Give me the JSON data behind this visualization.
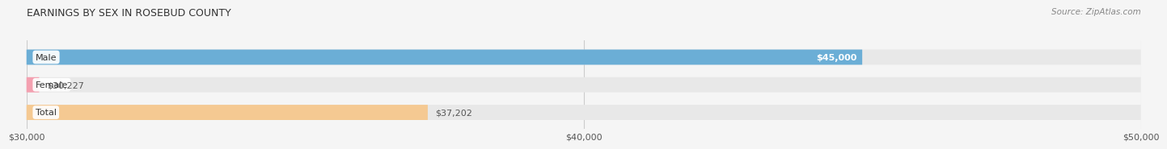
{
  "title": "EARNINGS BY SEX IN ROSEBUD COUNTY",
  "source": "Source: ZipAtlas.com",
  "categories": [
    "Male",
    "Female",
    "Total"
  ],
  "values": [
    45000,
    30227,
    37202
  ],
  "bar_colors": [
    "#6baed6",
    "#f4a0b0",
    "#f5c992"
  ],
  "label_inside": [
    true,
    false,
    false
  ],
  "x_min": 30000,
  "x_max": 50000,
  "x_ticks": [
    30000,
    40000,
    50000
  ],
  "x_tick_labels": [
    "$30,000",
    "$40,000",
    "$50,000"
  ],
  "bar_height": 0.55,
  "background_color": "#f5f5f5",
  "bar_background_color": "#e8e8e8",
  "title_fontsize": 9,
  "source_fontsize": 7.5,
  "label_fontsize": 8,
  "category_fontsize": 8,
  "tick_fontsize": 8
}
